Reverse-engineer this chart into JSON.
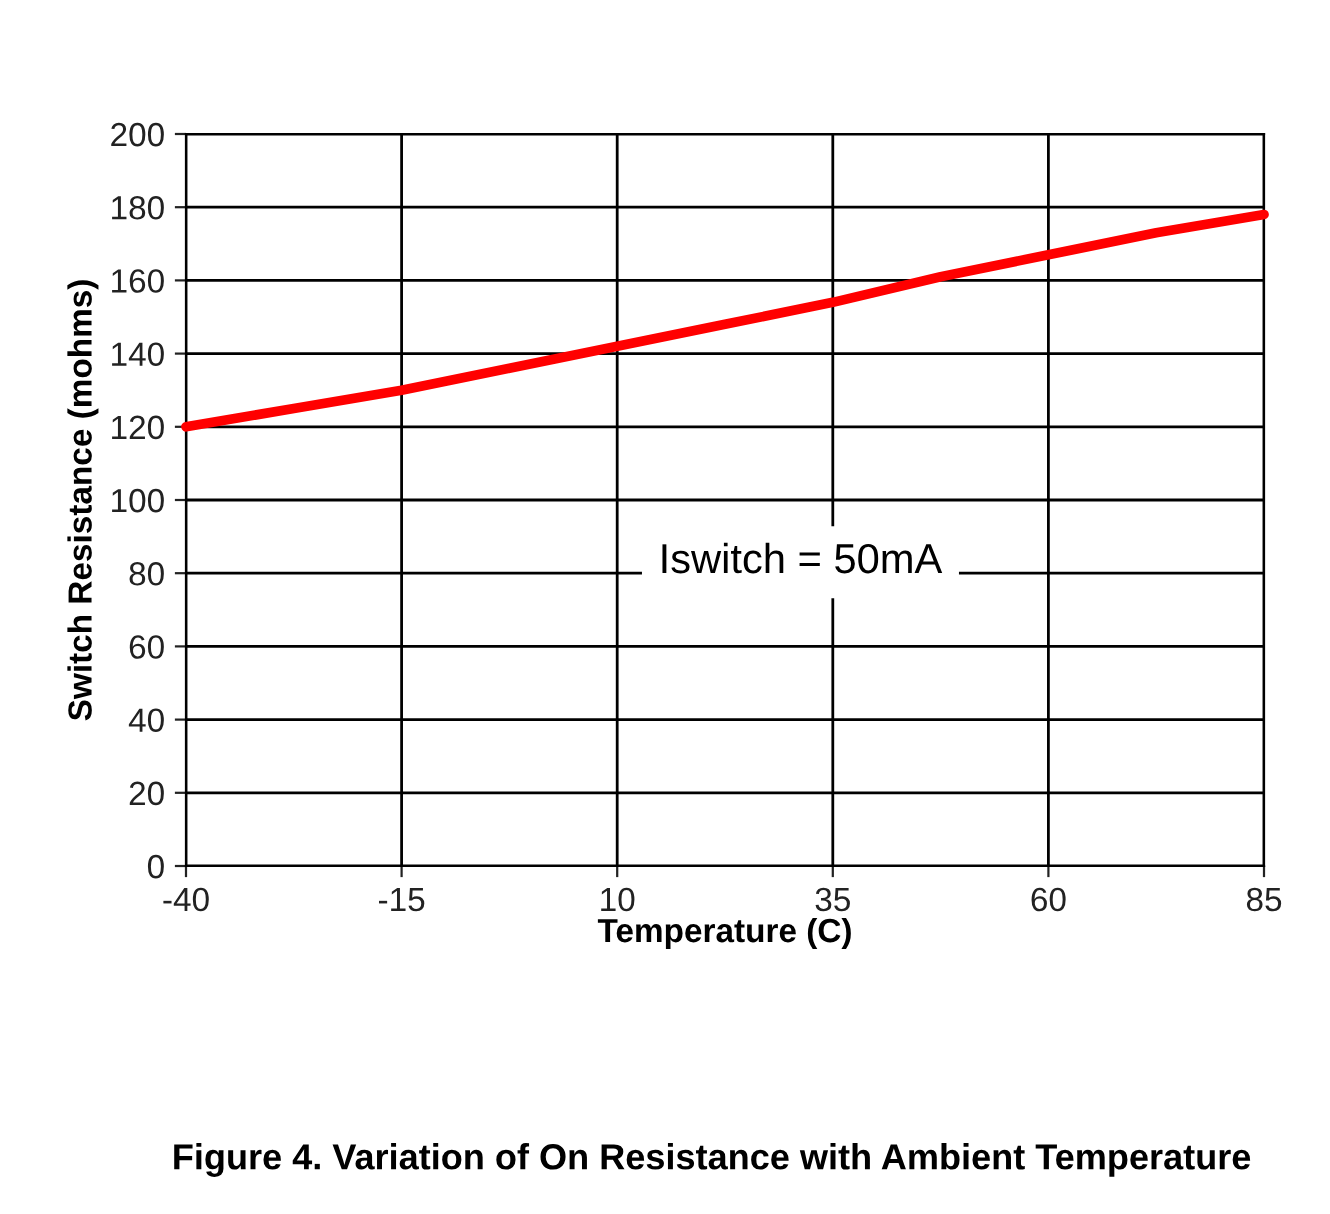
{
  "chart_data": {
    "type": "line",
    "xlabel": "Temperature (C)",
    "ylabel": "Switch Resistance (mohms)",
    "series": [
      {
        "color": "#ff0000",
        "x": [
          -40,
          -27.5,
          -15,
          -2.5,
          10,
          22.5,
          35,
          47.5,
          60,
          72.5,
          85
        ],
        "values": [
          120,
          125,
          130,
          136,
          142,
          148,
          154,
          161,
          167,
          173,
          178
        ]
      }
    ],
    "xlim": [
      -40,
      85
    ],
    "xticks": [
      -40,
      -15,
      10,
      35,
      60,
      85
    ],
    "ylim": [
      0,
      200
    ],
    "yticks": [
      0,
      20,
      40,
      60,
      80,
      100,
      120,
      140,
      160,
      180,
      200
    ],
    "grid": true,
    "legend": false,
    "marker": "none",
    "line_style": "solid",
    "annotations": [
      "Iswitch = 50mA",
      "Figure 4. Variation of On Resistance with Ambient Temperature"
    ]
  }
}
